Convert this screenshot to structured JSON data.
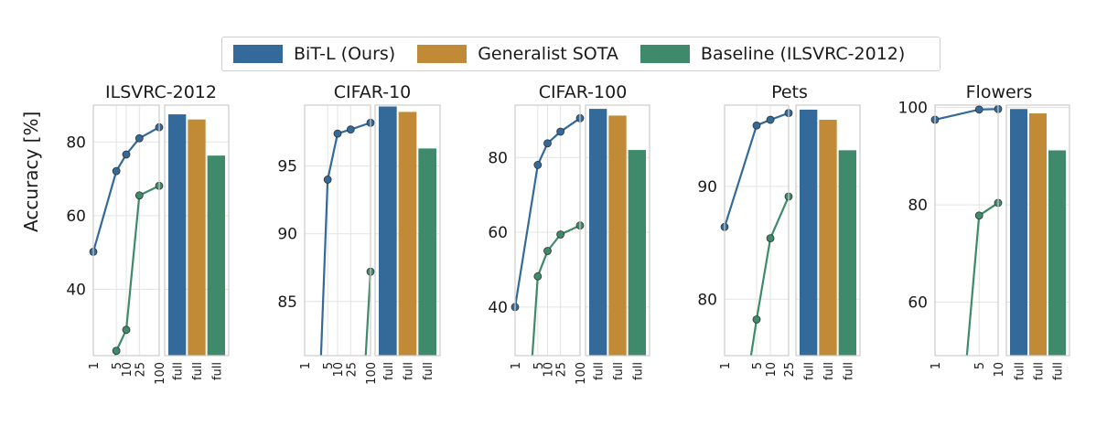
{
  "legend": {
    "items": [
      {
        "label": "BiT-L (Ours)",
        "color": "#336a9a"
      },
      {
        "label": "Generalist SOTA",
        "color": "#c08a36"
      },
      {
        "label": "Baseline (ILSVRC-2012)",
        "color": "#3e8a6b"
      }
    ]
  },
  "ylabel": "Accuracy [%]",
  "chart_data": [
    {
      "type": "line",
      "title": "ILSVRC-2012",
      "ylim": [
        22,
        90
      ],
      "yticks": [
        40,
        60,
        80
      ],
      "x_shots": [
        1,
        5,
        10,
        25,
        100
      ],
      "series": [
        {
          "name": "BiT-L (Ours)",
          "x": [
            1,
            5,
            10,
            25,
            100
          ],
          "y": [
            50.2,
            72.1,
            76.6,
            81.0,
            84.0
          ]
        },
        {
          "name": "Baseline (ILSVRC-2012)",
          "x": [
            1,
            5,
            10,
            25,
            100
          ],
          "y": [
            null,
            23.3,
            29.0,
            65.5,
            68.1
          ]
        }
      ],
      "bars": {
        "categories": [
          "full",
          "full",
          "full"
        ],
        "values": [
          87.5,
          86.1,
          76.3
        ]
      }
    },
    {
      "type": "line",
      "title": "CIFAR-10",
      "ylim": [
        81,
        99.5
      ],
      "yticks": [
        85,
        90,
        95
      ],
      "x_shots": [
        1,
        5,
        10,
        25,
        100
      ],
      "series": [
        {
          "name": "BiT-L (Ours)",
          "x": [
            1,
            5,
            10,
            25,
            100
          ],
          "y": [
            null,
            94.0,
            97.4,
            97.7,
            98.2
          ]
        },
        {
          "name": "Baseline (ILSVRC-2012)",
          "x": [
            1,
            5,
            10,
            25,
            100
          ],
          "y": [
            null,
            null,
            null,
            null,
            87.2
          ]
        }
      ],
      "bars": {
        "categories": [
          "full",
          "full",
          "full"
        ],
        "values": [
          99.4,
          99.0,
          96.3
        ]
      }
    },
    {
      "type": "line",
      "title": "CIFAR-100",
      "ylim": [
        27,
        94
      ],
      "yticks": [
        40,
        60,
        80
      ],
      "x_shots": [
        1,
        5,
        10,
        25,
        100
      ],
      "series": [
        {
          "name": "BiT-L (Ours)",
          "x": [
            1,
            5,
            10,
            25,
            100
          ],
          "y": [
            40.0,
            78.0,
            83.8,
            86.9,
            90.5
          ]
        },
        {
          "name": "Baseline (ILSVRC-2012)",
          "x": [
            1,
            5,
            10,
            25,
            100
          ],
          "y": [
            null,
            48.2,
            55.0,
            59.4,
            61.8
          ]
        }
      ],
      "bars": {
        "categories": [
          "full",
          "full",
          "full"
        ],
        "values": [
          93.0,
          91.2,
          82.0
        ]
      }
    },
    {
      "type": "line",
      "title": "Pets",
      "ylim": [
        75,
        97.2
      ],
      "yticks": [
        80,
        90
      ],
      "x_shots": [
        1,
        5,
        10,
        25
      ],
      "series": [
        {
          "name": "BiT-L (Ours)",
          "x": [
            1,
            5,
            10,
            25
          ],
          "y": [
            86.4,
            95.4,
            95.9,
            96.5
          ]
        },
        {
          "name": "Baseline (ILSVRC-2012)",
          "x": [
            1,
            5,
            10,
            25
          ],
          "y": [
            null,
            78.2,
            85.4,
            89.1
          ]
        }
      ],
      "bars": {
        "categories": [
          "full",
          "full",
          "full"
        ],
        "values": [
          96.8,
          95.9,
          93.2
        ]
      }
    },
    {
      "type": "line",
      "title": "Flowers",
      "ylim": [
        49,
        100.5
      ],
      "yticks": [
        60,
        80,
        100
      ],
      "x_shots": [
        1,
        5,
        10
      ],
      "series": [
        {
          "name": "BiT-L (Ours)",
          "x": [
            1,
            5,
            10
          ],
          "y": [
            97.5,
            99.6,
            99.7
          ]
        },
        {
          "name": "Baseline (ILSVRC-2012)",
          "x": [
            1,
            5,
            10
          ],
          "y": [
            null,
            77.8,
            80.4
          ]
        }
      ],
      "bars": {
        "categories": [
          "full",
          "full",
          "full"
        ],
        "values": [
          99.7,
          98.8,
          91.2
        ]
      }
    }
  ]
}
